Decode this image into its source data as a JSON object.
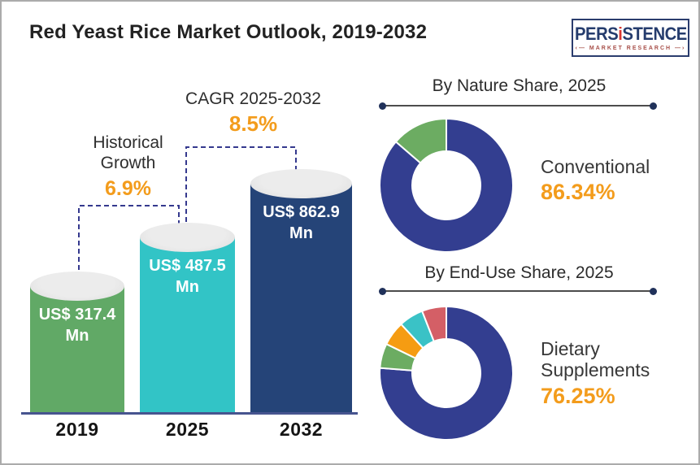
{
  "header": {
    "title": "Red Yeast Rice Market Outlook, 2019-2032",
    "logo": {
      "brand_left": "PERS",
      "brand_i": "i",
      "brand_right": "STENCE",
      "tagline": "MARKET RESEARCH"
    }
  },
  "accent_colors": {
    "orange_accent": "#f39c1c",
    "dashed_line": "#35398e",
    "axis_line": "#47548f"
  },
  "chart_data": [
    {
      "type": "bar",
      "title": "Red Yeast Rice Market Outlook, 2019-2032",
      "categories": [
        "2019",
        "2025",
        "2032"
      ],
      "values": [
        317.4,
        487.5,
        862.9
      ],
      "value_labels": [
        "US$ 317.4 Mn",
        "US$ 487.5 Mn",
        "US$ 862.9 Mn"
      ],
      "unit": "US$ Mn",
      "bar_style": "cylinder",
      "colors": [
        "#61a966",
        "#32c4c6",
        "#254478"
      ],
      "xlabel": "",
      "ylabel": "",
      "annotations": [
        {
          "label": "Historical Growth",
          "value": "6.9%",
          "span": [
            "2019",
            "2025"
          ]
        },
        {
          "label": "CAGR 2025-2032",
          "value": "8.5%",
          "span": [
            "2025",
            "2032"
          ]
        }
      ]
    },
    {
      "type": "pie",
      "subtype": "donut",
      "title": "By Nature Share, 2025",
      "labels": [
        "Conventional",
        "unlabeled"
      ],
      "values": [
        86.34,
        13.66
      ],
      "colors": [
        "#333e90",
        "#6cac62"
      ],
      "start_angle_deg": 0,
      "direction": "clockwise",
      "callout": {
        "label": "Conventional",
        "value": "86.34%"
      }
    },
    {
      "type": "pie",
      "subtype": "donut",
      "title": "By End-Use Share, 2025",
      "labels": [
        "Dietary Supplements",
        "unlabeled",
        "unlabeled",
        "unlabeled",
        "unlabeled"
      ],
      "values": [
        76.25,
        5.94,
        5.94,
        5.94,
        5.93
      ],
      "colors": [
        "#333e90",
        "#6cac62",
        "#f59c12",
        "#3ac2c6",
        "#d45f66"
      ],
      "start_angle_deg": 0,
      "direction": "clockwise",
      "callout": {
        "label": "Dietary Supplements",
        "value": "76.25%"
      }
    }
  ]
}
